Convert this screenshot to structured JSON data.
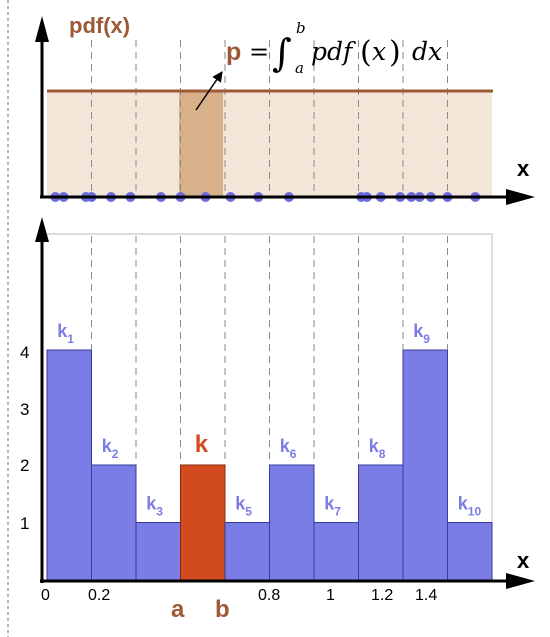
{
  "top_panel": {
    "y_label": "pdf(x)",
    "x_label": "x",
    "formula": {
      "lhs": "p",
      "equals": "=",
      "integral": "∫",
      "upper": "b",
      "lower": "a",
      "integrand": "pdf",
      "arg_open": "(",
      "arg": "x",
      "arg_close": ")",
      "dx": "dx"
    },
    "sample_points_x": [
      0.03,
      0.06,
      0.14,
      0.16,
      0.23,
      0.3,
      0.41,
      0.48,
      0.57,
      0.66,
      0.76,
      0.87,
      1.13,
      1.15,
      1.2,
      1.27,
      1.31,
      1.34,
      1.38,
      1.44,
      1.54
    ]
  },
  "bottom_panel": {
    "x_label": "x",
    "x_ticks": [
      "0",
      "0.2",
      "0.8",
      "1",
      "1.2",
      "1.4"
    ],
    "y_ticks": [
      "1",
      "2",
      "3",
      "4"
    ],
    "highlight_label": "k",
    "interval_start_label": "a",
    "interval_end_label": "b"
  },
  "chart_data": {
    "type": "bar",
    "bin_edges": [
      0,
      0.16,
      0.32,
      0.48,
      0.64,
      0.8,
      0.96,
      1.12,
      1.28,
      1.44,
      1.6
    ],
    "bin_labels": [
      "k1",
      "k2",
      "k3",
      "k",
      "k5",
      "k6",
      "k7",
      "k8",
      "k9",
      "k10"
    ],
    "values": [
      4,
      2,
      1,
      2,
      1,
      2,
      1,
      2,
      4,
      1
    ],
    "highlight_index": 3,
    "ylim": [
      0,
      4.5
    ],
    "xlim": [
      0,
      1.6
    ]
  },
  "colors": {
    "histogram_fill": "#7b7de6",
    "histogram_stroke": "#3a3a9a",
    "highlight_bar": "#d24b1f",
    "pdf_line": "#9c5a36",
    "pdf_fill": "#f2e6d8",
    "pdf_highlight": "#d8b08a",
    "label_brown": "#9c5a36",
    "sample_point": "#6b6be0"
  }
}
